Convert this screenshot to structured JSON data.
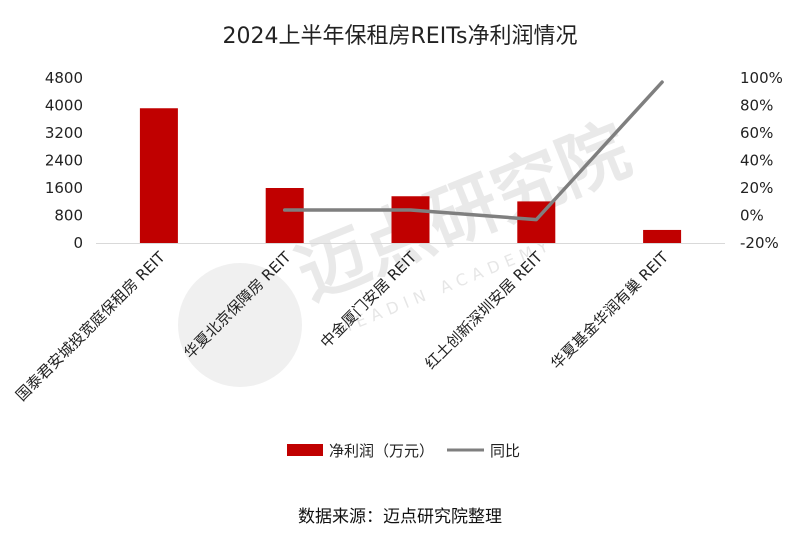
{
  "chart_data": {
    "type": "bar",
    "title": "2024上半年保租房REITs净利润情况",
    "categories": [
      "国泰君安城投宽庭保租房 REIT",
      "华夏北京保障房 REIT",
      "中金厦门安居 REIT",
      "红土创新深圳安居 REIT",
      "华夏基金华润有巢 REIT"
    ],
    "series": [
      {
        "name": "净利润（万元）",
        "type": "bar",
        "axis": "left",
        "color": "#C00000",
        "values": [
          3920,
          1600,
          1360,
          1210,
          380
        ]
      },
      {
        "name": "同比",
        "type": "line",
        "axis": "right",
        "color": "#7F7F7F",
        "values": [
          null,
          4,
          4,
          -3,
          97
        ]
      }
    ],
    "y_left": {
      "ylim": [
        0,
        4800
      ],
      "ticks": [
        "0",
        "800",
        "1600",
        "2400",
        "3200",
        "4000",
        "4800"
      ]
    },
    "y_right": {
      "ylim": [
        -20,
        100
      ],
      "ticks": [
        "-20%",
        "0%",
        "20%",
        "40%",
        "60%",
        "80%",
        "100%"
      ]
    },
    "legend": "bottom",
    "grid": false
  },
  "watermark": {
    "text": "迈点研究院",
    "sub": "MEADIN ACADEMY"
  },
  "source": "数据来源：迈点研究院整理"
}
